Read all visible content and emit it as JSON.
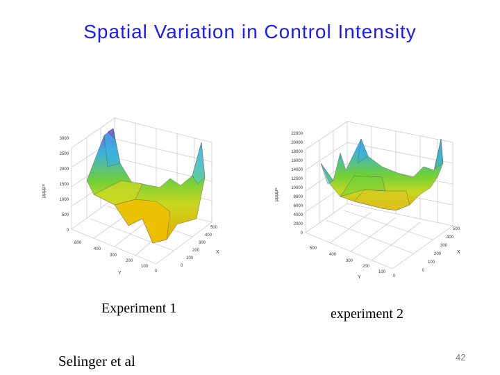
{
  "slide": {
    "title": "Spatial Variation in Control Intensity",
    "author": "Selinger et al",
    "page_number": "42"
  },
  "captions": {
    "left": "Experiment 1",
    "right": "experiment 2"
  },
  "plots": [
    {
      "z_label": "μμμμ×",
      "y_label": "Y",
      "x_label": "X",
      "z_ticks": [
        "0",
        "500",
        "1000",
        "1500",
        "2000",
        "2500",
        "3000"
      ],
      "y_ticks": [
        "600",
        "400",
        "300",
        "200",
        "100",
        "0"
      ],
      "x_ticks": [
        "0",
        "100",
        "200",
        "300",
        "400",
        "500"
      ]
    },
    {
      "z_label": "μμμμ×",
      "y_label": "Y",
      "x_label": "X",
      "z_ticks": [
        "0",
        "2000",
        "4000",
        "6000",
        "8000",
        "10000",
        "12000",
        "14000",
        "16000",
        "18000",
        "20000",
        "22000"
      ],
      "y_ticks": [
        "500",
        "400",
        "300",
        "200",
        "100",
        "0"
      ],
      "x_ticks": [
        "0",
        "100",
        "200",
        "300",
        "400",
        "500"
      ]
    }
  ],
  "colors": {
    "title": "#1a1aff",
    "surface_low": "#e6a800",
    "surface_mid": "#6fcf3a",
    "surface_high": "#3ab0e0",
    "surface_peak": "#7a5ad0"
  }
}
